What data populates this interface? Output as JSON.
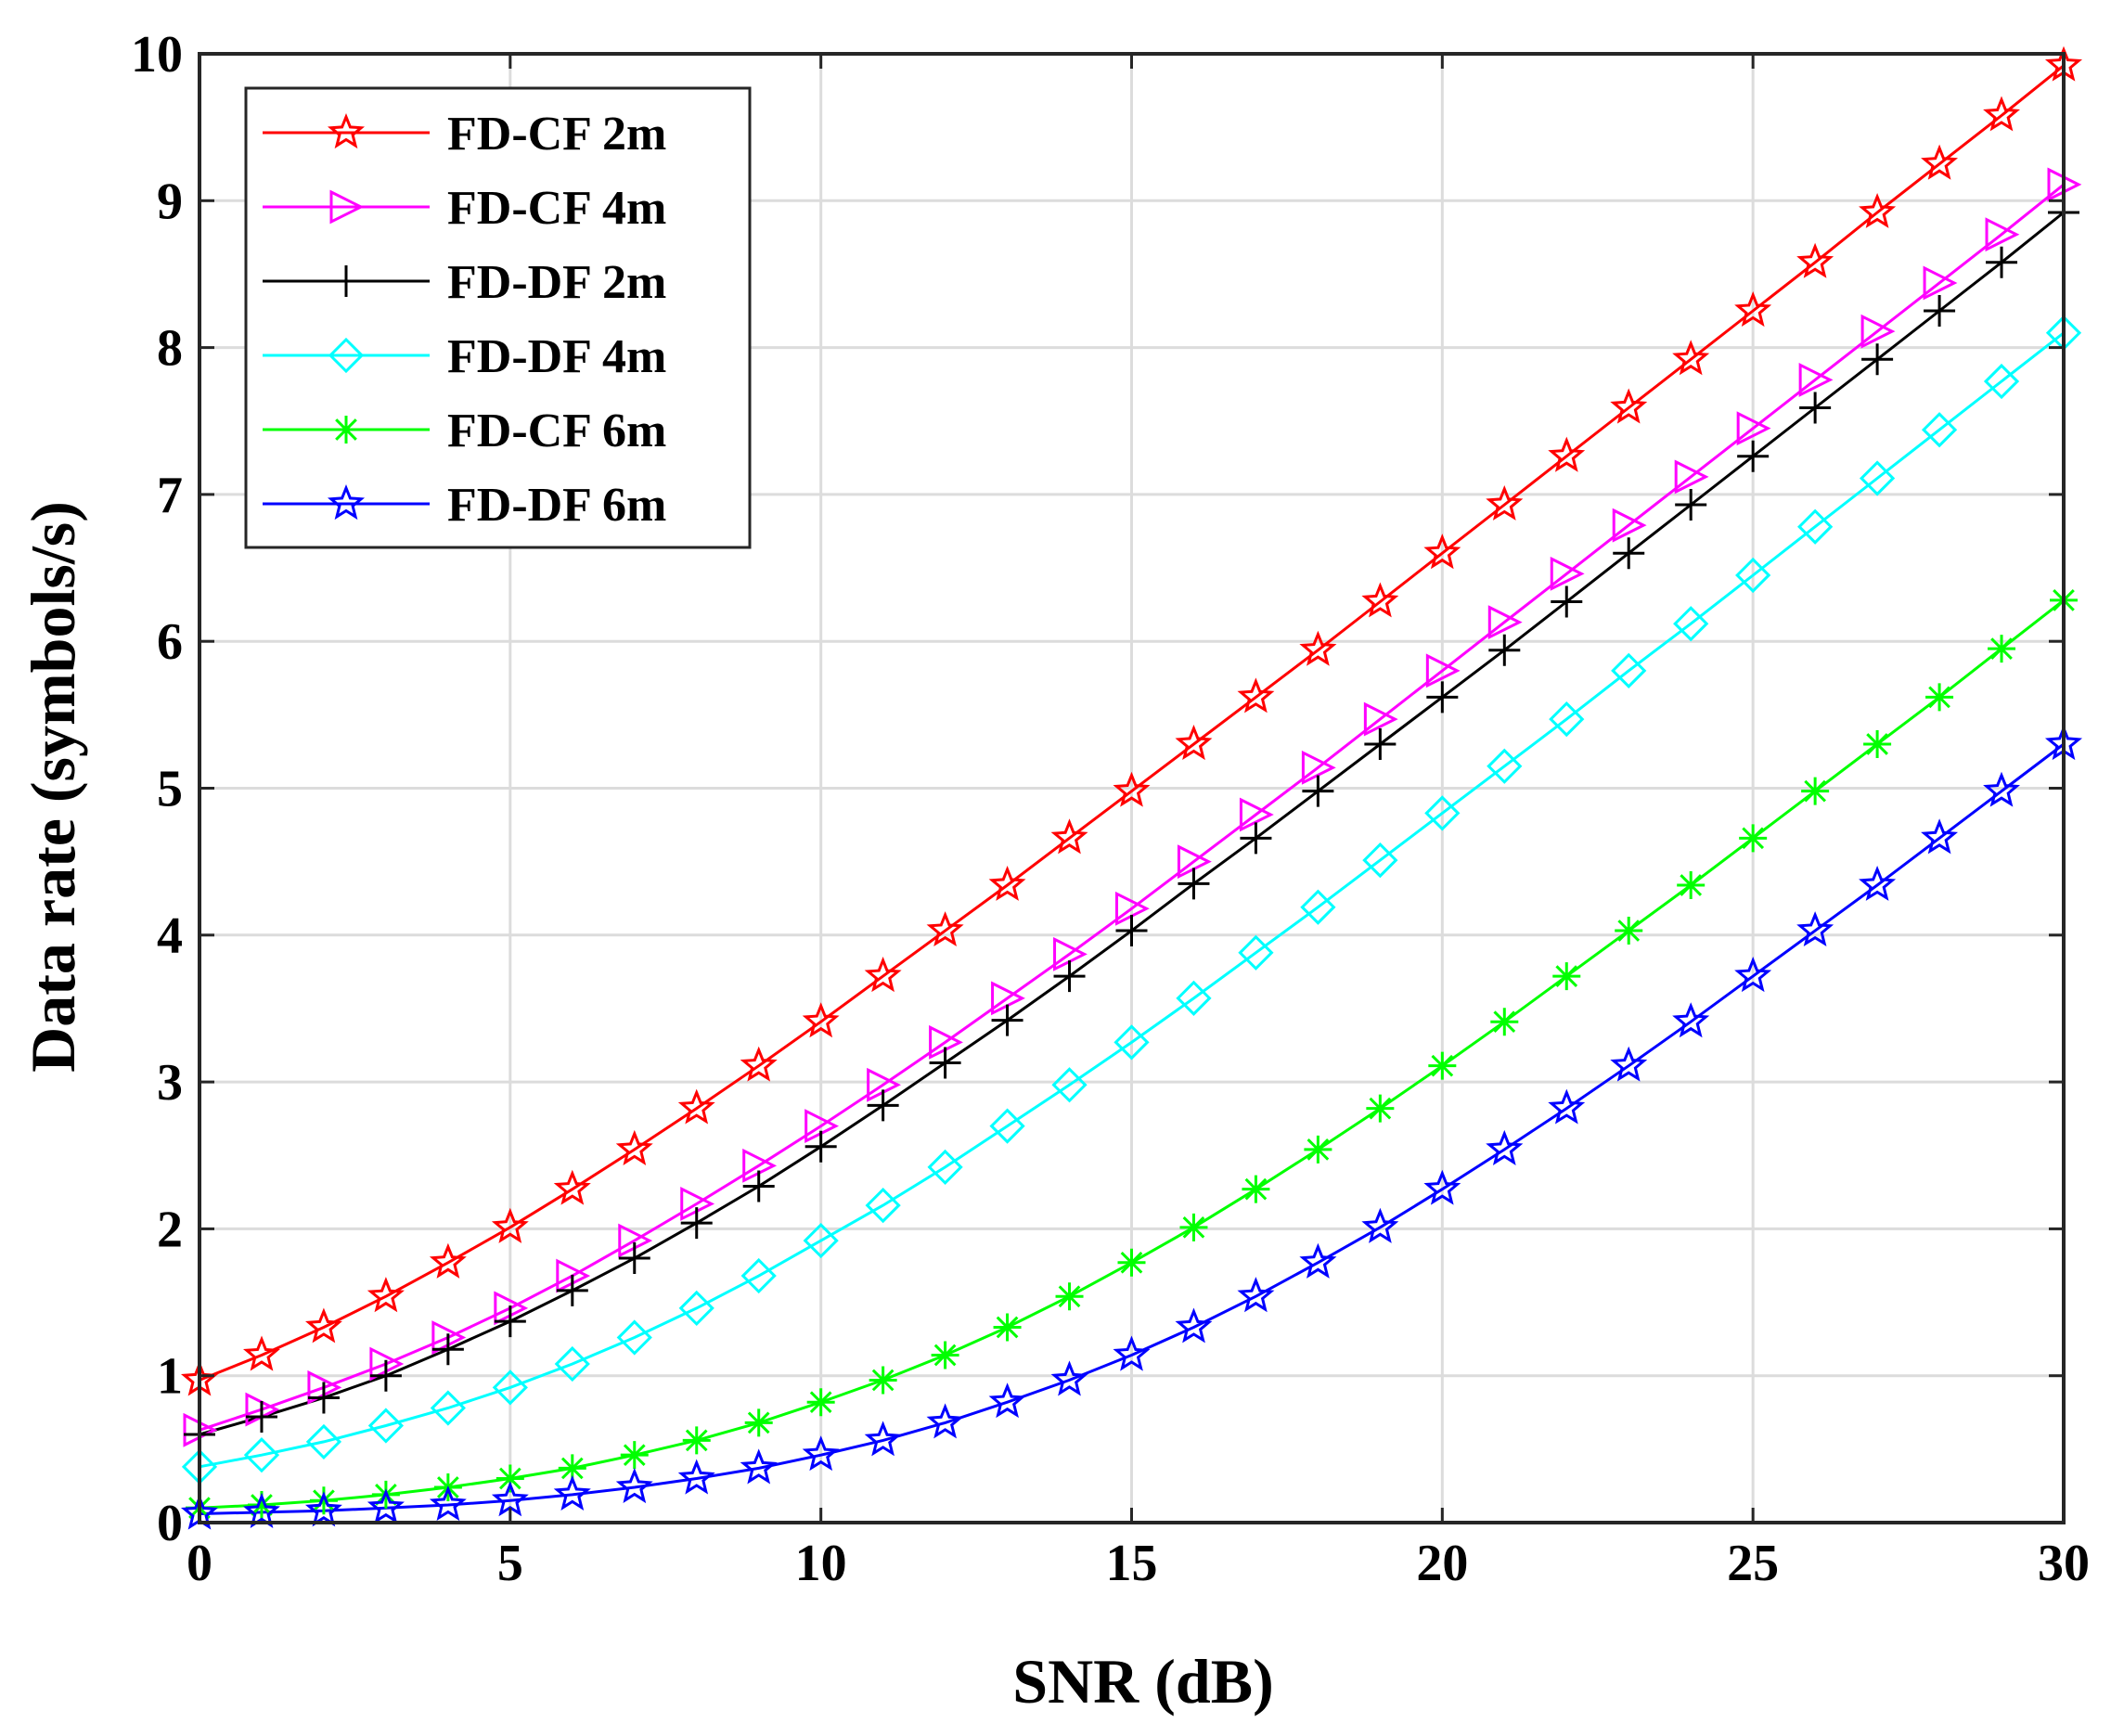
{
  "chart_data": {
    "type": "line",
    "title": "",
    "xlabel": "SNR (dB)",
    "ylabel": "Data rate (symbols/s)",
    "xlim": [
      0,
      30
    ],
    "ylim": [
      0,
      10
    ],
    "xticks": [
      0,
      5,
      10,
      15,
      20,
      25,
      30
    ],
    "yticks": [
      0,
      1,
      2,
      3,
      4,
      5,
      6,
      7,
      8,
      9,
      10
    ],
    "grid": true,
    "legend_position": "top-left",
    "x": [
      0,
      1,
      2,
      3,
      4,
      5,
      6,
      7,
      8,
      9,
      10,
      11,
      12,
      13,
      14,
      15,
      16,
      17,
      18,
      19,
      20,
      21,
      22,
      23,
      24,
      25,
      26,
      27,
      28,
      29,
      30
    ],
    "series": [
      {
        "name": "FD-CF 2m",
        "color": "#ff0000",
        "marker": "star",
        "values": [
          0.97,
          1.14,
          1.33,
          1.54,
          1.77,
          2.01,
          2.27,
          2.54,
          2.82,
          3.11,
          3.41,
          3.72,
          4.03,
          4.34,
          4.66,
          4.98,
          5.3,
          5.62,
          5.94,
          6.27,
          6.6,
          6.93,
          7.26,
          7.59,
          7.92,
          8.25,
          8.58,
          8.92,
          9.25,
          9.58,
          9.92
        ]
      },
      {
        "name": "FD-CF 4m",
        "color": "#ff00ff",
        "marker": "triangle-right",
        "values": [
          0.63,
          0.77,
          0.92,
          1.08,
          1.26,
          1.46,
          1.68,
          1.92,
          2.17,
          2.43,
          2.7,
          2.98,
          3.27,
          3.57,
          3.87,
          4.18,
          4.5,
          4.82,
          5.14,
          5.47,
          5.8,
          6.13,
          6.46,
          6.79,
          7.12,
          7.45,
          7.78,
          8.11,
          8.44,
          8.77,
          9.11
        ]
      },
      {
        "name": "FD-DF 2m",
        "color": "#000000",
        "marker": "plus",
        "values": [
          0.6,
          0.72,
          0.85,
          1.0,
          1.18,
          1.37,
          1.58,
          1.8,
          2.04,
          2.29,
          2.56,
          2.84,
          3.13,
          3.42,
          3.72,
          4.03,
          4.35,
          4.66,
          4.98,
          5.3,
          5.62,
          5.94,
          6.27,
          6.6,
          6.93,
          7.26,
          7.59,
          7.92,
          8.25,
          8.58,
          8.92
        ]
      },
      {
        "name": "FD-DF 4m",
        "color": "#00ffff",
        "marker": "diamond",
        "values": [
          0.38,
          0.46,
          0.55,
          0.66,
          0.78,
          0.92,
          1.08,
          1.26,
          1.46,
          1.68,
          1.92,
          2.16,
          2.42,
          2.7,
          2.98,
          3.27,
          3.57,
          3.88,
          4.19,
          4.51,
          4.83,
          5.15,
          5.47,
          5.8,
          6.12,
          6.45,
          6.78,
          7.11,
          7.44,
          7.77,
          8.1
        ]
      },
      {
        "name": "FD-CF 6m",
        "color": "#00ff00",
        "marker": "asterisk",
        "values": [
          0.1,
          0.12,
          0.15,
          0.19,
          0.24,
          0.3,
          0.37,
          0.46,
          0.56,
          0.68,
          0.82,
          0.97,
          1.14,
          1.33,
          1.54,
          1.77,
          2.01,
          2.27,
          2.54,
          2.82,
          3.11,
          3.41,
          3.72,
          4.03,
          4.34,
          4.66,
          4.98,
          5.3,
          5.62,
          5.95,
          6.28
        ]
      },
      {
        "name": "FD-DF 6m",
        "color": "#0000ff",
        "marker": "star",
        "values": [
          0.06,
          0.07,
          0.08,
          0.1,
          0.12,
          0.15,
          0.19,
          0.24,
          0.3,
          0.37,
          0.46,
          0.56,
          0.68,
          0.82,
          0.97,
          1.14,
          1.33,
          1.54,
          1.77,
          2.01,
          2.27,
          2.54,
          2.82,
          3.11,
          3.41,
          3.72,
          4.03,
          4.34,
          4.66,
          4.98,
          5.3
        ]
      }
    ]
  }
}
